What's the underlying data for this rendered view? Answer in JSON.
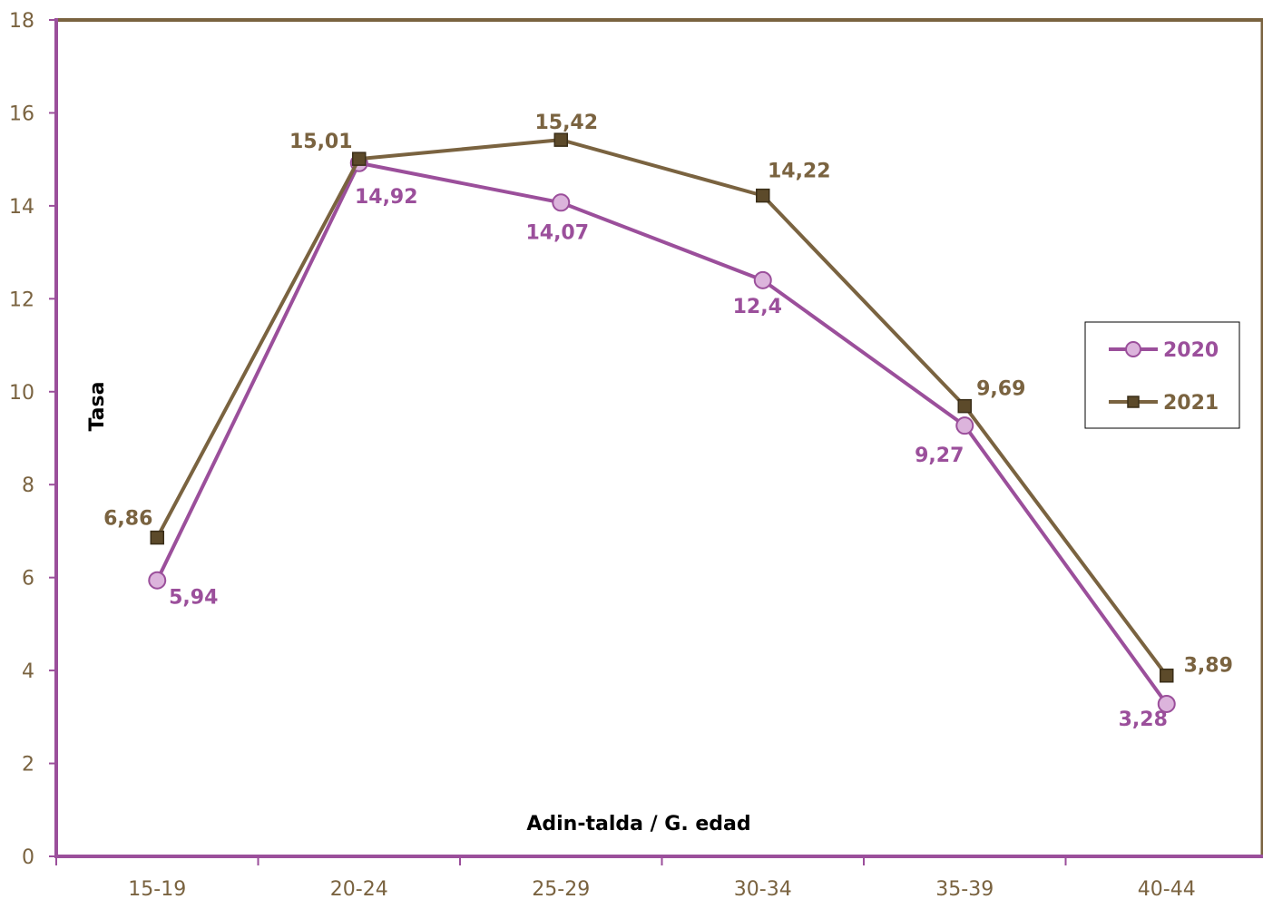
{
  "chart_data": {
    "type": "line",
    "title": "",
    "xlabel": "Adin-talda / G. edad",
    "ylabel": "Tasa",
    "categories": [
      "15-19",
      "20-24",
      "25-29",
      "30-34",
      "35-39",
      "40-44"
    ],
    "ylim": [
      0,
      18
    ],
    "yticks": [
      0,
      2,
      4,
      6,
      8,
      10,
      12,
      14,
      16,
      18
    ],
    "grid": false,
    "legend_position": "right",
    "series": [
      {
        "name": "2020",
        "values": [
          5.94,
          14.92,
          14.07,
          12.4,
          9.27,
          3.28
        ],
        "labels": [
          "5,94",
          "14,92",
          "14,07",
          "12,4",
          "9,27",
          "3,28"
        ],
        "color": "#9b4f9b",
        "marker_fill": "#dcb4dc",
        "marker": "circle"
      },
      {
        "name": "2021",
        "values": [
          6.86,
          15.01,
          15.42,
          14.22,
          9.69,
          3.89
        ],
        "labels": [
          "6,86",
          "15,01",
          "15,42",
          "14,22",
          "9,69",
          "3,89"
        ],
        "color": "#7a6340",
        "marker_fill": "#5c4a2a",
        "marker": "square"
      }
    ],
    "axis_color": "#9b4f9b",
    "frame_color": "#7a6340",
    "tick_label_color": "#7a6340"
  }
}
